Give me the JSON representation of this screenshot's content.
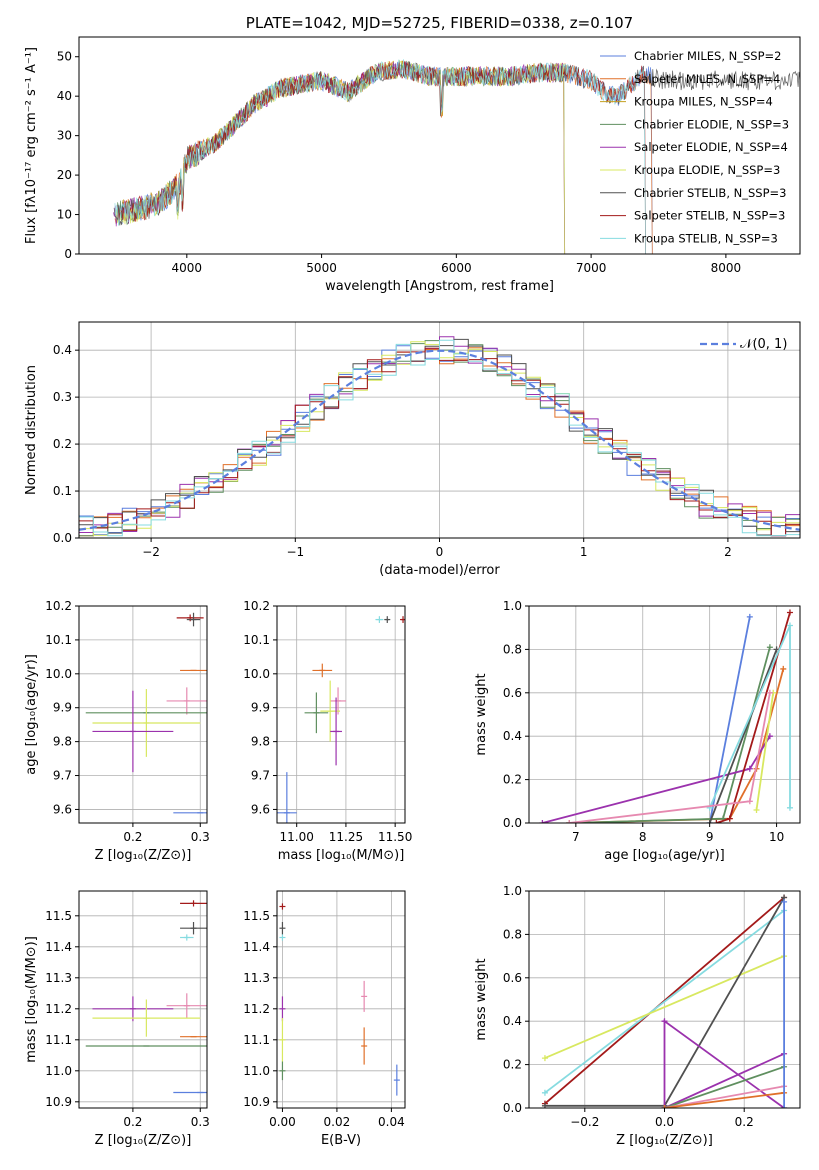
{
  "palette": {
    "c0": "#5b7fde",
    "c1": "#e0702a",
    "c2": "#c4a020",
    "c3": "#5f8f5f",
    "c4": "#9b32ad",
    "c5": "#d8e860",
    "c6": "#505050",
    "c7": "#a31a1a",
    "c8": "#86dbe0",
    "c9": "#e689b0"
  },
  "chart_data": [
    {
      "id": "spectrum",
      "type": "line",
      "title": "PLATE=1042, MJD=52725, FIBERID=0338, z=0.107",
      "xlabel": "wavelength [Angstrom, rest frame]",
      "ylabel": "Flux [fλ10⁻¹⁷ erg cm⁻² s⁻¹ A⁻¹]",
      "xlim": [
        3200,
        8550
      ],
      "ylim": [
        0,
        55
      ],
      "xticks": [
        4000,
        5000,
        6000,
        7000,
        8000
      ],
      "yticks": [
        0,
        10,
        20,
        30,
        40,
        50
      ],
      "grid": false,
      "legend_position": "top-right",
      "continuum": {
        "x": [
          3450,
          3600,
          3800,
          3950,
          4000,
          4200,
          4300,
          4500,
          4700,
          5000,
          5200,
          5400,
          5600,
          5800,
          6000,
          6200,
          6400,
          6600,
          6800,
          7000,
          7100,
          7200,
          7300,
          7400,
          7500
        ],
        "y": [
          10,
          11,
          13,
          18,
          24,
          28,
          31,
          38,
          42,
          44,
          41,
          46,
          47,
          45,
          45,
          45,
          45,
          46,
          46,
          44,
          41,
          40,
          43,
          46,
          44
        ]
      },
      "series": [
        {
          "name": "Chabrier MILES, N_SSP=2",
          "color_key": "c0",
          "x_end": 7450
        },
        {
          "name": "Salpeter MILES, N_SSP=4",
          "color_key": "c1",
          "x_end": 7450
        },
        {
          "name": "Kroupa MILES, N_SSP=4",
          "color_key": "c2",
          "x_end": 6800
        },
        {
          "name": "Chabrier ELODIE, N_SSP=3",
          "color_key": "c3",
          "x_end": 6800
        },
        {
          "name": "Salpeter ELODIE, N_SSP=4",
          "color_key": "c4",
          "x_end": 6800
        },
        {
          "name": "Kroupa ELODIE, N_SSP=3",
          "color_key": "c5",
          "x_end": 6800
        },
        {
          "name": "Chabrier STELIB, N_SSP=3",
          "color_key": "c6",
          "x_end": 8550
        },
        {
          "name": "Salpeter STELIB, N_SSP=3",
          "color_key": "c7",
          "x_end": 7400
        },
        {
          "name": "Kroupa STELIB, N_SSP=3",
          "color_key": "c8",
          "x_end": 7400
        }
      ]
    },
    {
      "id": "residuals",
      "type": "line",
      "xlabel": "(data-model)/error",
      "ylabel": "Normed distribution",
      "xlim": [
        -2.5,
        2.5
      ],
      "ylim": [
        0,
        0.46
      ],
      "xticks": [
        -2,
        -1,
        0,
        1,
        2
      ],
      "yticks": [
        0.0,
        0.1,
        0.2,
        0.3,
        0.4
      ],
      "grid": true,
      "legend_position": "top-right",
      "gaussian_label": "𝒩(0, 1)",
      "gaussian_color_key": "c0",
      "histogram_color_keys": [
        "c0",
        "c1",
        "c3",
        "c4",
        "c5",
        "c6",
        "c7",
        "c8"
      ]
    },
    {
      "id": "age_vs_Z",
      "type": "scatter",
      "xlabel": "Z [log₁₀(Z/Z⊙)]",
      "ylabel": "age  [log₁₀(age/yr)]",
      "xlim": [
        0.12,
        0.31
      ],
      "ylim": [
        9.56,
        10.2
      ],
      "xticks": [
        0.2,
        0.3
      ],
      "yticks": [
        9.6,
        9.7,
        9.8,
        9.9,
        10.0,
        10.1,
        10.2
      ],
      "grid": true,
      "points": [
        {
          "color_key": "c7",
          "x": 0.285,
          "y": 10.165,
          "xerr": 0.02,
          "yerr": 0.01
        },
        {
          "color_key": "c6",
          "x": 0.29,
          "y": 10.16,
          "xerr": 0.01,
          "yerr": 0.02
        },
        {
          "color_key": "c1",
          "x": 0.29,
          "y": 10.01,
          "xerr": 0.02,
          "yerr": 0.0
        },
        {
          "color_key": "c9",
          "x": 0.28,
          "y": 9.92,
          "xerr": 0.03,
          "yerr": 0.04
        },
        {
          "color_key": "c3",
          "x": 0.22,
          "y": 9.885,
          "xerr": 0.09,
          "yerr": 0.0
        },
        {
          "color_key": "c5",
          "x": 0.22,
          "y": 9.855,
          "xerr": 0.08,
          "yerr": 0.1
        },
        {
          "color_key": "c4",
          "x": 0.2,
          "y": 9.83,
          "xerr": 0.06,
          "yerr": 0.12
        },
        {
          "color_key": "c0",
          "x": 0.3,
          "y": 9.59,
          "xerr": 0.04,
          "yerr": 0.0
        }
      ]
    },
    {
      "id": "age_vs_mass",
      "type": "scatter",
      "xlabel": "mass [log₁₀(M/M⊙)]",
      "xlim": [
        10.9,
        11.55
      ],
      "ylim": [
        9.56,
        10.2
      ],
      "xticks": [
        11.0,
        11.25,
        11.5
      ],
      "yticks": [
        9.6,
        9.7,
        9.8,
        9.9,
        10.0,
        10.1,
        10.2
      ],
      "grid": true,
      "points": [
        {
          "color_key": "c8",
          "x": 11.42,
          "y": 10.16,
          "xerr": 0.02,
          "yerr": 0.01
        },
        {
          "color_key": "c6",
          "x": 11.46,
          "y": 10.16,
          "xerr": 0.01,
          "yerr": 0.01
        },
        {
          "color_key": "c7",
          "x": 11.54,
          "y": 10.16,
          "xerr": 0.01,
          "yerr": 0.01
        },
        {
          "color_key": "c1",
          "x": 11.13,
          "y": 10.01,
          "xerr": 0.05,
          "yerr": 0.02
        },
        {
          "color_key": "c9",
          "x": 11.21,
          "y": 9.92,
          "xerr": 0.04,
          "yerr": 0.04
        },
        {
          "color_key": "c5",
          "x": 11.17,
          "y": 9.89,
          "xerr": 0.05,
          "yerr": 0.09
        },
        {
          "color_key": "c3",
          "x": 11.1,
          "y": 9.885,
          "xerr": 0.06,
          "yerr": 0.06
        },
        {
          "color_key": "c4",
          "x": 11.2,
          "y": 9.83,
          "xerr": 0.03,
          "yerr": 0.1
        },
        {
          "color_key": "c0",
          "x": 10.95,
          "y": 9.59,
          "xerr": 0.05,
          "yerr": 0.12
        }
      ]
    },
    {
      "id": "massweight_vs_age",
      "type": "line",
      "xlabel": "age  [log₁₀(age/yr)]",
      "ylabel": "mass weight",
      "xlim": [
        6.3,
        10.35
      ],
      "ylim": [
        0,
        1.0
      ],
      "xticks": [
        7,
        8,
        9,
        10
      ],
      "yticks": [
        0.0,
        0.2,
        0.4,
        0.6,
        0.8,
        1.0
      ],
      "grid": true,
      "series": [
        {
          "color_key": "c0",
          "x": [
            9.0,
            9.6
          ],
          "y": [
            0.0,
            0.95
          ]
        },
        {
          "color_key": "c1",
          "x": [
            6.9,
            9.3,
            9.7,
            10.1
          ],
          "y": [
            0.0,
            0.02,
            0.25,
            0.71
          ]
        },
        {
          "color_key": "c3",
          "x": [
            6.9,
            9.2,
            9.9
          ],
          "y": [
            0.0,
            0.02,
            0.81
          ]
        },
        {
          "color_key": "c4",
          "x": [
            6.5,
            9.6,
            9.9
          ],
          "y": [
            0.0,
            0.25,
            0.4
          ]
        },
        {
          "color_key": "c5",
          "x": [
            9.7,
            9.95
          ],
          "y": [
            0.06,
            0.6
          ]
        },
        {
          "color_key": "c6",
          "x": [
            9.0,
            10.0
          ],
          "y": [
            0.0,
            0.8
          ]
        },
        {
          "color_key": "c7",
          "x": [
            9.1,
            9.3,
            10.2
          ],
          "y": [
            0.0,
            0.02,
            0.97
          ]
        },
        {
          "color_key": "c8",
          "x": [
            9.0,
            10.2,
            10.2
          ],
          "y": [
            0.07,
            0.91,
            0.07
          ]
        },
        {
          "color_key": "c9",
          "x": [
            6.9,
            9.6,
            9.9
          ],
          "y": [
            0.0,
            0.1,
            0.6
          ]
        }
      ]
    },
    {
      "id": "mass_vs_Z",
      "type": "scatter",
      "xlabel": "Z [log₁₀(Z/Z⊙)]",
      "ylabel": "mass [log₁₀(M/M⊙)]",
      "xlim": [
        0.12,
        0.31
      ],
      "ylim": [
        10.88,
        11.58
      ],
      "xticks": [
        0.2,
        0.3
      ],
      "yticks": [
        10.9,
        11.0,
        11.1,
        11.2,
        11.3,
        11.4,
        11.5
      ],
      "grid": true,
      "points": [
        {
          "color_key": "c7",
          "x": 0.29,
          "y": 11.54,
          "xerr": 0.02,
          "yerr": 0.01
        },
        {
          "color_key": "c6",
          "x": 0.29,
          "y": 11.46,
          "xerr": 0.02,
          "yerr": 0.02
        },
        {
          "color_key": "c8",
          "x": 0.28,
          "y": 11.43,
          "xerr": 0.01,
          "yerr": 0.01
        },
        {
          "color_key": "c4",
          "x": 0.2,
          "y": 11.2,
          "xerr": 0.06,
          "yerr": 0.04
        },
        {
          "color_key": "c9",
          "x": 0.28,
          "y": 11.21,
          "xerr": 0.03,
          "yerr": 0.04
        },
        {
          "color_key": "c5",
          "x": 0.22,
          "y": 11.17,
          "xerr": 0.08,
          "yerr": 0.06
        },
        {
          "color_key": "c1",
          "x": 0.29,
          "y": 11.11,
          "xerr": 0.02,
          "yerr": 0.0
        },
        {
          "color_key": "c3",
          "x": 0.22,
          "y": 11.08,
          "xerr": 0.09,
          "yerr": 0.0
        },
        {
          "color_key": "c0",
          "x": 0.3,
          "y": 10.93,
          "xerr": 0.04,
          "yerr": 0.0
        }
      ]
    },
    {
      "id": "mass_vs_EBV",
      "type": "scatter",
      "xlabel": "E(B-V)",
      "xlim": [
        -0.002,
        0.045
      ],
      "ylim": [
        10.88,
        11.58
      ],
      "xticks": [
        0.0,
        0.02,
        0.04
      ],
      "yticks": [
        10.9,
        11.0,
        11.1,
        11.2,
        11.3,
        11.4,
        11.5
      ],
      "grid": true,
      "points": [
        {
          "color_key": "c7",
          "x": 0.0,
          "y": 11.53,
          "xerr": 0.0,
          "yerr": 0.01
        },
        {
          "color_key": "c6",
          "x": 0.0,
          "y": 11.46,
          "xerr": 0.0,
          "yerr": 0.02
        },
        {
          "color_key": "c8",
          "x": 0.0,
          "y": 11.43,
          "xerr": 0.0,
          "yerr": 0.01
        },
        {
          "color_key": "c4",
          "x": 0.0,
          "y": 11.2,
          "xerr": 0.0,
          "yerr": 0.04
        },
        {
          "color_key": "c5",
          "x": 0.0,
          "y": 11.1,
          "xerr": 0.0,
          "yerr": 0.07
        },
        {
          "color_key": "c3",
          "x": 0.0,
          "y": 11.0,
          "xerr": 0.0,
          "yerr": 0.03
        },
        {
          "color_key": "c9",
          "x": 0.03,
          "y": 11.24,
          "xerr": 0.0,
          "yerr": 0.05
        },
        {
          "color_key": "c1",
          "x": 0.03,
          "y": 11.08,
          "xerr": 0.0,
          "yerr": 0.06
        },
        {
          "color_key": "c0",
          "x": 0.042,
          "y": 10.97,
          "xerr": 0.0,
          "yerr": 0.05
        }
      ]
    },
    {
      "id": "massweight_vs_Z",
      "type": "line",
      "xlabel": "Z [log₁₀(Z/Z⊙)]",
      "ylabel": "mass weight",
      "xlim": [
        -0.34,
        0.34
      ],
      "ylim": [
        0,
        1.0
      ],
      "xticks": [
        -0.2,
        0.0,
        0.2
      ],
      "yticks": [
        0.0,
        0.2,
        0.4,
        0.6,
        0.8,
        1.0
      ],
      "grid": true,
      "series": [
        {
          "color_key": "c7",
          "x": [
            -0.3,
            0.3
          ],
          "y": [
            0.02,
            0.97
          ]
        },
        {
          "color_key": "c8",
          "x": [
            -0.3,
            0.3
          ],
          "y": [
            0.07,
            0.91
          ]
        },
        {
          "color_key": "c5",
          "x": [
            -0.3,
            0.3
          ],
          "y": [
            0.23,
            0.7
          ]
        },
        {
          "color_key": "c6",
          "x": [
            -0.3,
            0.0,
            0.3
          ],
          "y": [
            0.01,
            0.01,
            0.97
          ]
        },
        {
          "color_key": "c4",
          "x": [
            0.0,
            0.0,
            0.3
          ],
          "y": [
            0.0,
            0.4,
            0.0
          ]
        },
        {
          "color_key": "c4",
          "x": [
            0.0,
            0.3
          ],
          "y": [
            0.0,
            0.25
          ]
        },
        {
          "color_key": "c3",
          "x": [
            0.0,
            0.3
          ],
          "y": [
            0.0,
            0.19
          ]
        },
        {
          "color_key": "c9",
          "x": [
            0.0,
            0.3
          ],
          "y": [
            0.0,
            0.1
          ]
        },
        {
          "color_key": "c1",
          "x": [
            0.0,
            0.3
          ],
          "y": [
            0.0,
            0.07
          ]
        },
        {
          "color_key": "c0",
          "x": [
            0.3,
            0.3
          ],
          "y": [
            0.0,
            0.95
          ]
        }
      ]
    }
  ]
}
